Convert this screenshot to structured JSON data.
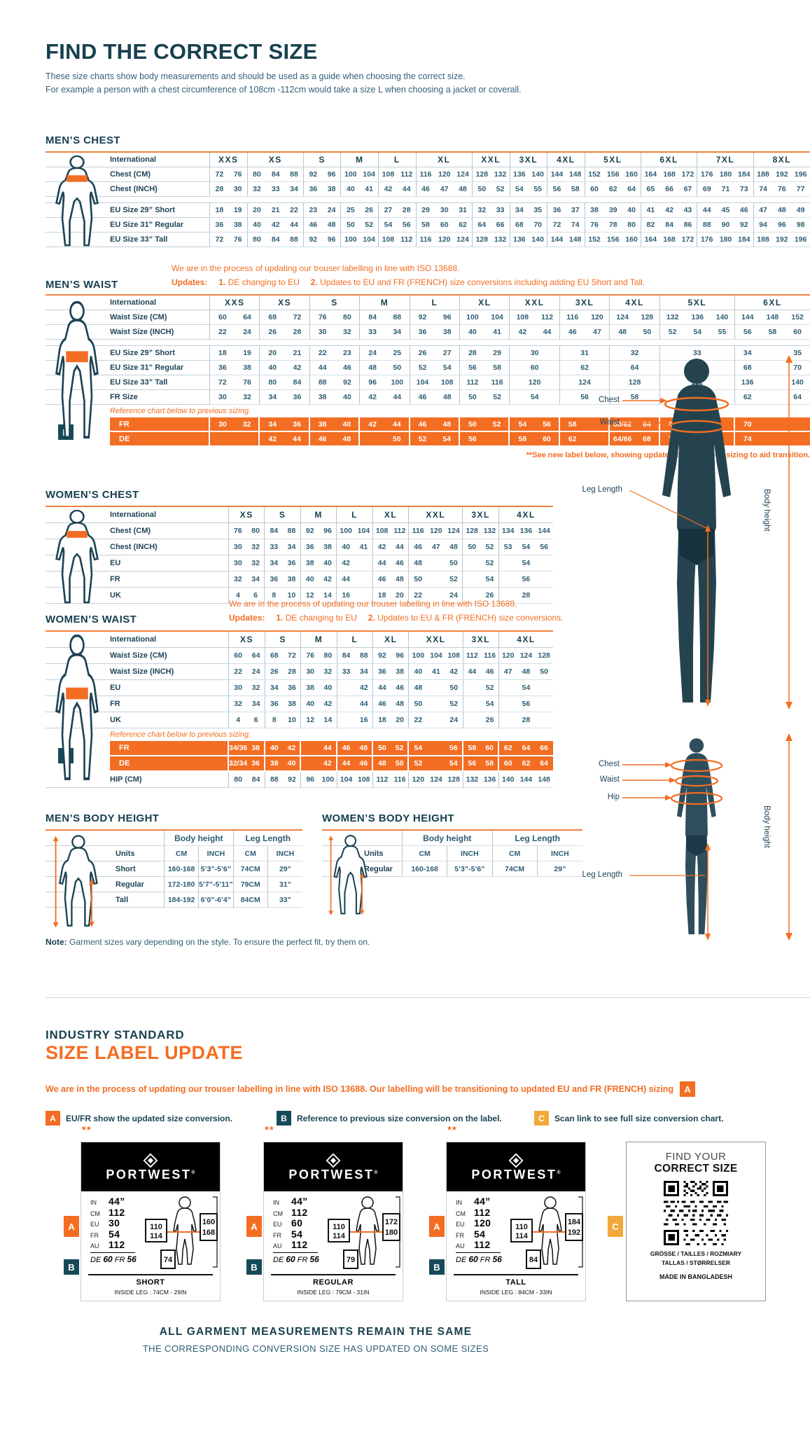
{
  "colors": {
    "navy": "#17404f",
    "orange": "#f36d22",
    "amber": "#f2a93b",
    "teal_badge": "#174a59",
    "table_top_border": "#f08143"
  },
  "badges": {
    "a": "A",
    "b": "B",
    "c": "C"
  },
  "header": {
    "title": "FIND THE CORRECT SIZE",
    "desc1": "These size charts show body measurements and should be used as a guide when choosing the correct size.",
    "desc2": "For example a person with a chest circumference of 108cm -112cm would take a size L when choosing a jacket or coverall."
  },
  "tables": {
    "mens_chest": {
      "title": "MEN’S CHEST",
      "label_header": "International",
      "groups": [
        {
          "label": "XXS",
          "span": 2
        },
        {
          "label": "XS",
          "span": 3
        },
        {
          "label": "S",
          "span": 2
        },
        {
          "label": "M",
          "span": 2
        },
        {
          "label": "L",
          "span": 2
        },
        {
          "label": "XL",
          "span": 3
        },
        {
          "label": "XXL",
          "span": 2
        },
        {
          "label": "3XL",
          "span": 2
        },
        {
          "label": "4XL",
          "span": 2
        },
        {
          "label": "5XL",
          "span": 3
        },
        {
          "label": "6XL",
          "span": 3
        },
        {
          "label": "7XL",
          "span": 3
        },
        {
          "label": "8XL",
          "span": 3
        }
      ],
      "rows": [
        {
          "t": "ghead"
        },
        {
          "label": "Chest (CM)",
          "cells": "72 76 80 84 88 92 96 100 104 108 112 116 120 124 128 132 136 140 144 148 152 156 160 164 168 172 176 180 184 188 192 196"
        },
        {
          "label": "Chest (INCH)",
          "cells": "28 30 32 33 34 36 38 40 41 42 44 46 47 48 50 52 54 55 56 58 60 62 64 65 66 67 69 71 73 74 76 77"
        },
        {
          "t": "spacer"
        },
        {
          "label": "EU Size 29” Short",
          "cells": "18 19 20 21 22 23 24 25 26 27 28 29 30 31 32 33 34 35 36 37 38 39 40 41 42 43 44 45 46 47 48 49"
        },
        {
          "label": "EU Size 31” Regular",
          "cells": "36 38 40 42 44 46 48 50 52 54 56 58 60 62 64 66 68 70 72 74 76 78 80 82 84 86 88 90 92 94 96 98"
        },
        {
          "label": "EU Size 33” Tall",
          "cells": "72 76 80 84 88 92 96 100 104 108 112 116 120 124 128 132 136 140 144 148 152 156 160 164 168 172 176 180 184 188 192 196"
        }
      ]
    },
    "mens_waist": {
      "title": "MEN’S WAIST",
      "label_header": "International",
      "notice": "We are in the process of updating our trouser labelling in line with ISO 13688.",
      "updates": {
        "label": "Updates:",
        "n1": "1.",
        "t1": "DE changing to EU",
        "n2": "2.",
        "t2": "Updates to EU and FR (FRENCH) size conversions including adding EU Short and Tall."
      },
      "see_note": "**See new label below, showing updated and previous sizing to aid transition.",
      "groups": [
        {
          "label": "XXS",
          "span": 2
        },
        {
          "label": "XS",
          "span": 2
        },
        {
          "label": "S",
          "span": 2
        },
        {
          "label": "M",
          "span": 2
        },
        {
          "label": "L",
          "span": 2
        },
        {
          "label": "XL",
          "span": 2
        },
        {
          "label": "XXL",
          "span": 2
        },
        {
          "label": "3XL",
          "span": 2
        },
        {
          "label": "4XL",
          "span": 2
        },
        {
          "label": "5XL",
          "span": 3
        },
        {
          "label": "6XL",
          "span": 3
        }
      ],
      "rows": [
        {
          "t": "ghead"
        },
        {
          "label": "Waist Size (CM)",
          "cells": "60 64 68 72 76 80 84 88 92 96 100 104 108 112 116 120 124 128 132 136 140 144 148 152"
        },
        {
          "label": "Waist Size (INCH)",
          "cells": "22 24 26 28 30 32 33 34 36 38 40 41 42 44 46 47 48 50 52 54 55 56 58 60"
        },
        {
          "t": "spacer"
        },
        {
          "label": "EU Size 29” Short",
          "cells": [
            "18",
            "19",
            "20",
            "21",
            "22",
            "23",
            "24",
            "25",
            "26",
            "27",
            "28",
            "29",
            [
              "30",
              2
            ],
            [
              "31",
              2
            ],
            [
              "32",
              2
            ],
            [
              "33",
              3
            ],
            "34",
            "",
            "35"
          ]
        },
        {
          "label": "EU Size 31” Regular",
          "cells": [
            "36",
            "38",
            "40",
            "42",
            "44",
            "46",
            "48",
            "50",
            "52",
            "54",
            "56",
            "58",
            [
              "60",
              2
            ],
            [
              "62",
              2
            ],
            [
              "64",
              2
            ],
            [
              "66",
              3
            ],
            "68",
            "",
            "70"
          ]
        },
        {
          "label": "EU Size 33” Tall",
          "cells": [
            "72",
            "76",
            "80",
            "84",
            "88",
            "92",
            "96",
            "100",
            "104",
            "108",
            "112",
            "116",
            [
              "120",
              2
            ],
            [
              "124",
              2
            ],
            [
              "128",
              2
            ],
            [
              "132",
              3
            ],
            "136",
            "",
            "140"
          ]
        },
        {
          "label": "FR Size",
          "cells": [
            "30",
            "32",
            "34",
            "36",
            "38",
            "40",
            "42",
            "44",
            "46",
            "48",
            "50",
            "52",
            [
              "54",
              2
            ],
            [
              "56",
              2
            ],
            [
              "58",
              2
            ],
            [
              "60",
              3
            ],
            "62",
            "",
            "64"
          ]
        },
        {
          "t": "note",
          "label": "Reference chart below to previous sizing."
        },
        {
          "t": "orange",
          "label": "FR",
          "cells": [
            "30",
            "32",
            "34",
            "36",
            "38",
            "40",
            "42",
            "44",
            "46",
            "48",
            "50",
            "52",
            "54",
            "56",
            "58",
            "",
            "60/62",
            "64",
            "66",
            "68",
            "",
            "70",
            "",
            ""
          ]
        },
        {
          "t": "orange",
          "label": "DE",
          "cells": [
            "",
            "",
            "42",
            "44",
            "46",
            "48",
            "",
            "50",
            "52",
            "54",
            "56",
            "",
            "58",
            "60",
            "62",
            "",
            "64/66",
            "68",
            "70",
            "72",
            "",
            "74",
            "",
            ""
          ]
        }
      ]
    },
    "womens_chest": {
      "title": "WOMEN’S CHEST",
      "label_header": "International",
      "groups": [
        {
          "label": "XS",
          "span": 2
        },
        {
          "label": "S",
          "span": 2
        },
        {
          "label": "M",
          "span": 2
        },
        {
          "label": "L",
          "span": 2
        },
        {
          "label": "XL",
          "span": 2
        },
        {
          "label": "XXL",
          "span": 3
        },
        {
          "label": "3XL",
          "span": 2
        },
        {
          "label": "4XL",
          "span": 3
        }
      ],
      "rows": [
        {
          "t": "ghead"
        },
        {
          "label": "Chest (CM)",
          "cells": "76 80 84 88 92 96 100 104 108 112 116 120 124 128 132 134 136 144"
        },
        {
          "label": "Chest (INCH)",
          "cells": "30 32 33 34 36 38 40 41 42 44 46 47 48 50 52 53 54 56"
        },
        {
          "label": "EU",
          "cells": [
            "30",
            "32",
            "34",
            "36",
            "38",
            "40",
            "42",
            "",
            "44",
            "46",
            "48",
            "",
            "50",
            "",
            "52",
            [
              "54",
              3
            ]
          ]
        },
        {
          "label": "FR",
          "cells": [
            "32",
            "34",
            "36",
            "38",
            "40",
            "42",
            "44",
            "",
            "46",
            "48",
            "50",
            "",
            "52",
            "",
            "54",
            [
              "56",
              3
            ]
          ]
        },
        {
          "label": "UK",
          "cells": [
            "4",
            "6",
            "8",
            "10",
            "12",
            "14",
            "16",
            "",
            "18",
            "20",
            "22",
            "",
            "24",
            "",
            "26",
            [
              "28",
              3
            ]
          ]
        }
      ]
    },
    "womens_waist": {
      "title": "WOMEN’S WAIST",
      "label_header": "International",
      "notice": "We are in the process of updating our trouser labelling in line with ISO 13688.",
      "updates": {
        "label": "Updates:",
        "n1": "1.",
        "t1": "DE changing to EU",
        "n2": "2.",
        "t2": "Updates to EU & FR (FRENCH) size conversions."
      },
      "groups": [
        {
          "label": "XS",
          "span": 2
        },
        {
          "label": "S",
          "span": 2
        },
        {
          "label": "M",
          "span": 2
        },
        {
          "label": "L",
          "span": 2
        },
        {
          "label": "XL",
          "span": 2
        },
        {
          "label": "XXL",
          "span": 3
        },
        {
          "label": "3XL",
          "span": 2
        },
        {
          "label": "4XL",
          "span": 3
        }
      ],
      "rows": [
        {
          "t": "ghead"
        },
        {
          "label": "Waist Size (CM)",
          "cells": "60 64 68 72 76 80 84 88 92 96 100 104 108 112 116 120 124 128"
        },
        {
          "label": "Waist Size (INCH)",
          "cells": "22 24 26 28 30 32 33 34 36 38 40 41 42 44 46 47 48 50"
        },
        {
          "label": "EU",
          "cells": [
            "30",
            "32",
            "34",
            "36",
            "38",
            "40",
            "",
            "42",
            "44",
            "46",
            "48",
            "",
            "50",
            "",
            "52",
            [
              "54",
              3
            ]
          ]
        },
        {
          "label": "FR",
          "cells": [
            "32",
            "34",
            "36",
            "38",
            "40",
            "42",
            "",
            "44",
            "46",
            "48",
            "50",
            "",
            "52",
            "",
            "54",
            [
              "56",
              3
            ]
          ]
        },
        {
          "label": "UK",
          "cells": [
            "4",
            "6",
            "8",
            "10",
            "12",
            "14",
            "",
            "16",
            "18",
            "20",
            "22",
            "",
            "24",
            "",
            "26",
            [
              "28",
              3
            ]
          ]
        },
        {
          "t": "note",
          "label": "Reference chart below to previous sizing."
        },
        {
          "t": "orange",
          "label": "FR",
          "cells": [
            "34/36",
            "38",
            "40",
            "42",
            "",
            "44",
            "46",
            "48",
            "50",
            "52",
            "54",
            "",
            "56",
            "58",
            "60",
            "62",
            "64",
            "66"
          ]
        },
        {
          "t": "orange",
          "label": "DE",
          "cells": [
            "32/34",
            "36",
            "38",
            "40",
            "",
            "42",
            "44",
            "46",
            "48",
            "50",
            "52",
            "",
            "54",
            "56",
            "58",
            "60",
            "62",
            "64"
          ]
        },
        {
          "label": "HIP (CM)",
          "cells": "80 84 88 92 96 100 104 108 112 116 120 124 128 132 136 140 144 148"
        }
      ]
    },
    "mens_body": {
      "title": "MEN’S BODY HEIGHT",
      "label_header": "",
      "groups": [
        {
          "label": "",
          "span": 1
        },
        {
          "label": "",
          "span": 1
        },
        {
          "label": "",
          "span": 1
        },
        {
          "label": "",
          "span": 1
        }
      ],
      "rows": [
        {
          "label": "",
          "cells": [
            [
              "Body height",
              2
            ],
            [
              "Leg Length",
              2
            ]
          ],
          "cls": "bh"
        },
        {
          "label": "Units",
          "cells": "CM INCH CM INCH"
        },
        {
          "label": "Short",
          "cells": [
            "160-168",
            "5’3”-5’6”",
            "74CM",
            "29”"
          ]
        },
        {
          "label": "Regular",
          "cells": [
            "172-180",
            "5’7”-5’11”",
            "79CM",
            "31”"
          ]
        },
        {
          "label": "Tall",
          "cells": [
            "184-192",
            "6’0”-6’4”",
            "84CM",
            "33”"
          ]
        }
      ]
    },
    "womens_body": {
      "title": "WOMEN’S BODY HEIGHT",
      "label_header": "",
      "groups": [
        {
          "label": "",
          "span": 1
        },
        {
          "label": "",
          "span": 1
        },
        {
          "label": "",
          "span": 1
        },
        {
          "label": "",
          "span": 1
        }
      ],
      "rows": [
        {
          "label": "",
          "cells": [
            [
              "Body height",
              2
            ],
            [
              "Leg Length",
              2
            ]
          ],
          "cls": "bh"
        },
        {
          "label": "Units",
          "cells": "CM INCH CM INCH"
        },
        {
          "label": "Regular",
          "cells": [
            "160-168",
            "5’3”-5’6”",
            "74CM",
            "29”"
          ]
        }
      ]
    }
  },
  "figures": {
    "male": {
      "chest": "Chest",
      "waist": "Waist",
      "leg": "Leg Length",
      "height": "Body height"
    },
    "female": {
      "chest": "Chest",
      "waist": "Waist",
      "hip": "Hip",
      "leg": "Leg Length",
      "height": "Body height"
    }
  },
  "note": {
    "label": "Note:",
    "text": " Garment sizes vary depending on the style. To ensure the perfect fit, try them on."
  },
  "industry": {
    "line1": "INDUSTRY STANDARD",
    "line2": "SIZE LABEL UPDATE"
  },
  "iso_banner": {
    "text": "We are in the process of updating our trouser labelling in line with ISO 13688. Our labelling will be transitioning to updated EU and FR (FRENCH) sizing"
  },
  "legend": [
    {
      "badge": "A",
      "text": "EU/FR show the updated size conversion."
    },
    {
      "badge": "B",
      "text": "Reference to previous size conversion on the label."
    },
    {
      "badge": "C",
      "text": "Scan link to see full size conversion chart."
    }
  ],
  "cards": [
    {
      "stars": "**",
      "brand": "PORTWEST",
      "reg": "®",
      "rows": [
        [
          "IN",
          "44”"
        ],
        [
          "CM",
          "112"
        ],
        [
          "EU",
          "30"
        ],
        [
          "FR",
          "54"
        ],
        [
          "AU",
          "112"
        ]
      ],
      "de": {
        "l1": "DE",
        "v1": "60",
        "l2": "FR",
        "v2": "56"
      },
      "left_box": [
        "110",
        "114"
      ],
      "right_box": [
        "160",
        "168"
      ],
      "bottom_box": "74",
      "fit": "SHORT",
      "inside_leg": "INSIDE LEG : 74CM - 29IN"
    },
    {
      "stars": "**",
      "brand": "PORTWEST",
      "reg": "®",
      "rows": [
        [
          "IN",
          "44”"
        ],
        [
          "CM",
          "112"
        ],
        [
          "EU",
          "60"
        ],
        [
          "FR",
          "54"
        ],
        [
          "AU",
          "112"
        ]
      ],
      "de": {
        "l1": "DE",
        "v1": "60",
        "l2": "FR",
        "v2": "56"
      },
      "left_box": [
        "110",
        "114"
      ],
      "right_box": [
        "172",
        "180"
      ],
      "bottom_box": "79",
      "fit": "REGULAR",
      "inside_leg": "INSIDE LEG : 79CM - 31IN"
    },
    {
      "stars": "**",
      "brand": "PORTWEST",
      "reg": "®",
      "rows": [
        [
          "IN",
          "44”"
        ],
        [
          "CM",
          "112"
        ],
        [
          "EU",
          "120"
        ],
        [
          "FR",
          "54"
        ],
        [
          "AU",
          "112"
        ]
      ],
      "de": {
        "l1": "DE",
        "v1": "60",
        "l2": "FR",
        "v2": "56"
      },
      "left_box": [
        "110",
        "114"
      ],
      "right_box": [
        "184",
        "192"
      ],
      "bottom_box": "84",
      "fit": "TALL",
      "inside_leg": "INSIDE LEG : 84CM - 33IN"
    }
  ],
  "qr_card": {
    "find": "FIND YOUR",
    "correct": "CORRECT SIZE",
    "langs1": "GRÖSSE / TAILLES / ROZMIARY",
    "langs2": "TALLAS / STØRRELSER",
    "made": "MADE IN BANGLADESH"
  },
  "footer": {
    "line1": "ALL GARMENT MEASUREMENTS REMAIN THE SAME",
    "line2": "THE CORRESPONDING CONVERSION SIZE HAS UPDATED ON SOME SIZES"
  }
}
